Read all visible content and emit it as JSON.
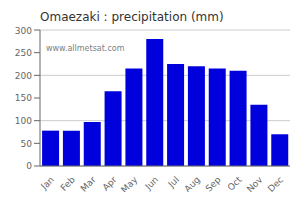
{
  "chart_data": {
    "type": "bar",
    "title": "Omaezaki : precipitation (mm)",
    "categories": [
      "Jan",
      "Feb",
      "Mar",
      "Apr",
      "May",
      "Jun",
      "Jul",
      "Aug",
      "Sep",
      "Oct",
      "Nov",
      "Dec"
    ],
    "values": [
      78,
      78,
      97,
      165,
      215,
      280,
      225,
      220,
      215,
      210,
      135,
      70
    ],
    "color": "#0000dd",
    "ylim": [
      0,
      300
    ],
    "yticks": [
      0,
      50,
      100,
      150,
      200,
      250,
      300
    ],
    "grid": true,
    "annotations": [
      "www.allmetsat.com"
    ]
  }
}
